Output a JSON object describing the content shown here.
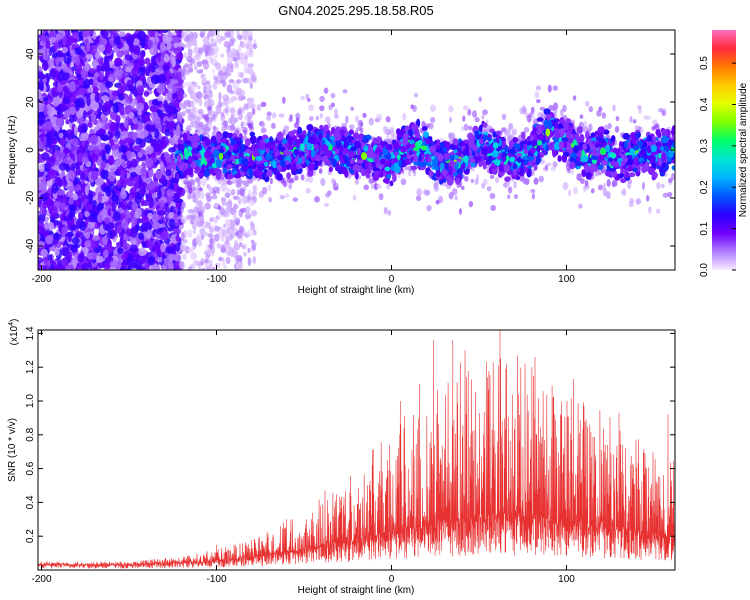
{
  "title": "GN04.2025.295.18.58.R05",
  "colors": {
    "snr_line": "#e83232",
    "axis": "#000000",
    "background": "#ffffff"
  },
  "chart_data": [
    {
      "type": "heatmap",
      "title": "GN04.2025.295.18.58.R05",
      "xlabel": "Height of straight line (km)",
      "ylabel": "Frequency (Hz)",
      "xlim": [
        -202,
        162
      ],
      "ylim": [
        -50,
        50
      ],
      "x_ticks": [
        -200,
        -100,
        0,
        100
      ],
      "y_ticks": [
        -40,
        -20,
        0,
        20,
        40
      ],
      "colorbar": {
        "label": "Normalized spectral amplitude",
        "range": [
          0,
          0.58
        ],
        "ticks": [
          "0.0",
          "0.1",
          "0.2",
          "0.3",
          "0.4",
          "0.5"
        ],
        "tick_values": [
          0.0,
          0.1,
          0.2,
          0.3,
          0.4,
          0.5
        ],
        "colormap": [
          "#f8ecff",
          "#b07cff",
          "#6f00ff",
          "#2b00ff",
          "#0055ff",
          "#00b4ff",
          "#00e6d2",
          "#00ff6a",
          "#7dff00",
          "#e6ff00",
          "#ffcc00",
          "#ff7a00",
          "#ff2a3c",
          "#ff6ec0"
        ]
      },
      "regions": [
        {
          "name": "noise",
          "x_range": [
            -202,
            -120
          ],
          "freq_band": [
            -50,
            50
          ],
          "amplitude": 0.12
        },
        {
          "name": "fading-noise",
          "x_range": [
            -120,
            -78
          ],
          "freq_band": [
            -50,
            50
          ],
          "amplitude": 0.04
        },
        {
          "name": "signal-band",
          "x_range": [
            -122,
            162
          ],
          "freq_band": [
            -10,
            10
          ],
          "peak_amplitude": 0.38
        }
      ],
      "band_center": [
        {
          "x": -120,
          "f": -3
        },
        {
          "x": -100,
          "f": -2
        },
        {
          "x": -80,
          "f": -3
        },
        {
          "x": -60,
          "f": -2
        },
        {
          "x": -50,
          "f": 0
        },
        {
          "x": -40,
          "f": 1
        },
        {
          "x": -30,
          "f": 0
        },
        {
          "x": -20,
          "f": -2
        },
        {
          "x": -10,
          "f": -3
        },
        {
          "x": 0,
          "f": -5
        },
        {
          "x": 10,
          "f": 3
        },
        {
          "x": 20,
          "f": 0
        },
        {
          "x": 30,
          "f": -6
        },
        {
          "x": 40,
          "f": -4
        },
        {
          "x": 50,
          "f": 3
        },
        {
          "x": 60,
          "f": -2
        },
        {
          "x": 70,
          "f": -4
        },
        {
          "x": 80,
          "f": 0
        },
        {
          "x": 90,
          "f": 8
        },
        {
          "x": 100,
          "f": 5
        },
        {
          "x": 110,
          "f": -3
        },
        {
          "x": 120,
          "f": 0
        },
        {
          "x": 130,
          "f": -5
        },
        {
          "x": 140,
          "f": 0
        },
        {
          "x": 150,
          "f": -2
        },
        {
          "x": 160,
          "f": 0
        }
      ]
    },
    {
      "type": "line",
      "xlabel": "Height of straight line (km)",
      "ylabel": "SNR (10 * v/v)",
      "y_scale_label": "(x10",
      "y_scale_exponent": "4",
      "y_scale_suffix": ")",
      "xlim": [
        -202,
        162
      ],
      "ylim": [
        0,
        1.42
      ],
      "x_ticks": [
        -200,
        -100,
        0,
        100
      ],
      "y_ticks": [
        "0.2",
        "0.4",
        "0.6",
        "0.8",
        "1.0",
        "1.2",
        "1.4"
      ],
      "y_tick_values": [
        0.2,
        0.4,
        0.6,
        0.8,
        1.0,
        1.2,
        1.4
      ],
      "series": [
        {
          "name": "SNR",
          "envelope": [
            {
              "x": -202,
              "base": 0.03,
              "peak": 0.05
            },
            {
              "x": -150,
              "base": 0.03,
              "peak": 0.05
            },
            {
              "x": -120,
              "base": 0.04,
              "peak": 0.08
            },
            {
              "x": -100,
              "base": 0.05,
              "peak": 0.13
            },
            {
              "x": -80,
              "base": 0.07,
              "peak": 0.18
            },
            {
              "x": -60,
              "base": 0.1,
              "peak": 0.3
            },
            {
              "x": -40,
              "base": 0.13,
              "peak": 0.45
            },
            {
              "x": -20,
              "base": 0.17,
              "peak": 0.6
            },
            {
              "x": 0,
              "base": 0.2,
              "peak": 0.85
            },
            {
              "x": 20,
              "base": 0.24,
              "peak": 1.1
            },
            {
              "x": 40,
              "base": 0.27,
              "peak": 1.25
            },
            {
              "x": 60,
              "base": 0.28,
              "peak": 1.3
            },
            {
              "x": 80,
              "base": 0.28,
              "peak": 1.22
            },
            {
              "x": 100,
              "base": 0.26,
              "peak": 1.1
            },
            {
              "x": 120,
              "base": 0.24,
              "peak": 0.95
            },
            {
              "x": 140,
              "base": 0.2,
              "peak": 0.8
            },
            {
              "x": 162,
              "base": 0.18,
              "peak": 0.65
            }
          ],
          "spikes": [
            {
              "x": 24,
              "y": 1.36
            },
            {
              "x": 35,
              "y": 1.36
            },
            {
              "x": 62,
              "y": 1.42
            },
            {
              "x": 42,
              "y": 1.3
            },
            {
              "x": 72,
              "y": 1.27
            },
            {
              "x": 82,
              "y": 1.26
            },
            {
              "x": 104,
              "y": 1.13
            },
            {
              "x": 110,
              "y": 0.97
            },
            {
              "x": 130,
              "y": 0.93
            },
            {
              "x": 158,
              "y": 0.92
            },
            {
              "x": 5,
              "y": 1.0
            },
            {
              "x": 16,
              "y": 1.1
            },
            {
              "x": -100,
              "y": 0.15
            },
            {
              "x": -60,
              "y": 0.3
            },
            {
              "x": -38,
              "y": 0.47
            }
          ]
        }
      ]
    }
  ]
}
